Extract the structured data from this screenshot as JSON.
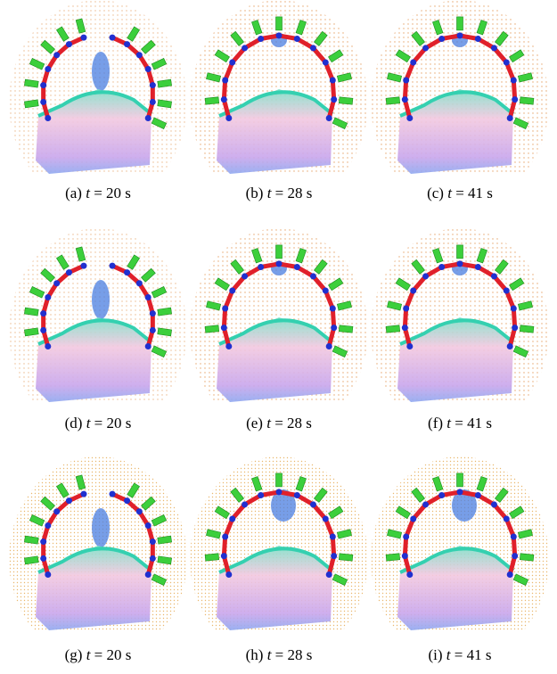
{
  "panels": [
    {
      "label": "(a)",
      "variable": "t",
      "value": "= 20 s"
    },
    {
      "label": "(b)",
      "variable": "t",
      "value": "= 28 s"
    },
    {
      "label": "(c)",
      "variable": "t",
      "value": "= 41 s"
    },
    {
      "label": "(d)",
      "variable": "t",
      "value": "= 20 s"
    },
    {
      "label": "(e)",
      "variable": "t",
      "value": "= 28 s"
    },
    {
      "label": "(f)",
      "variable": "t",
      "value": "= 41 s"
    },
    {
      "label": "(g)",
      "variable": "t",
      "value": "= 20 s"
    },
    {
      "label": "(h)",
      "variable": "t",
      "value": "= 28 s"
    },
    {
      "label": "(i)",
      "variable": "t",
      "value": "= 41 s"
    }
  ]
}
